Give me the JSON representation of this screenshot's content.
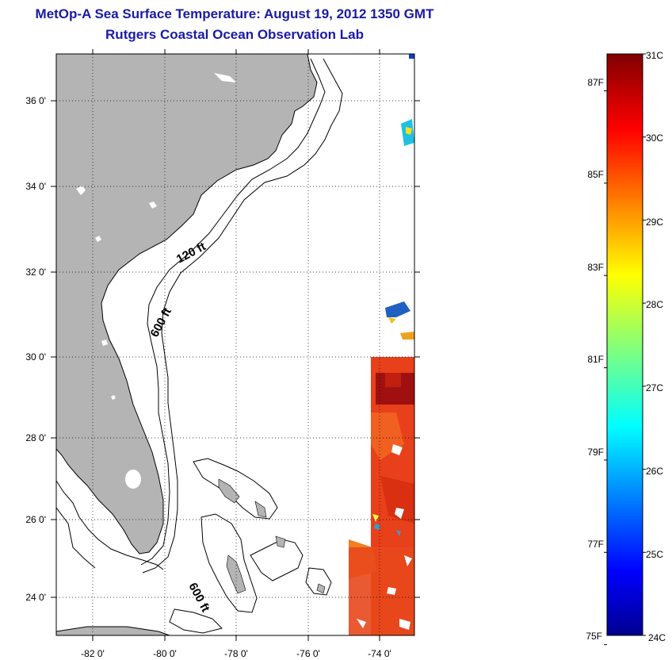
{
  "header": {
    "title": "MetOp-A Sea Surface Temperature:  August 19, 2012 1350 GMT",
    "subtitle": "Rutgers Coastal Ocean Observation Lab"
  },
  "map": {
    "lon_range": [
      -83,
      -73
    ],
    "lat_range": [
      23,
      37
    ],
    "lon_ticks": [
      -82,
      -80,
      -78,
      -76,
      -74
    ],
    "lat_ticks": [
      24,
      26,
      28,
      30,
      32,
      34,
      36
    ],
    "lon_tick_labels": [
      "-82 0'",
      "-80 0'",
      "-78 0'",
      "-76 0'",
      "-74 0'"
    ],
    "lat_tick_labels": [
      "24 0'",
      "26 0'",
      "28 0'",
      "30 0'",
      "32 0'",
      "34 0'",
      "36 0'"
    ],
    "grid": "dotted",
    "land_color": "#b4b4b4",
    "depth_labels": [
      "120 ft",
      "600 ft",
      "600 ft"
    ]
  },
  "colorbar": {
    "celsius_labels": [
      "31C",
      "30C",
      "29C",
      "28C",
      "27C",
      "26C",
      "25C",
      "24C"
    ],
    "celsius_values": [
      31,
      30,
      29,
      28,
      27,
      26,
      25,
      24
    ],
    "fahrenheit_labels": [
      "87F",
      "85F",
      "83F",
      "81F",
      "79F",
      "77F",
      "75F"
    ],
    "fahrenheit_values": [
      87,
      85,
      83,
      81,
      79,
      77,
      75
    ],
    "min_c": 24,
    "max_c": 31,
    "colormap": "jet"
  }
}
